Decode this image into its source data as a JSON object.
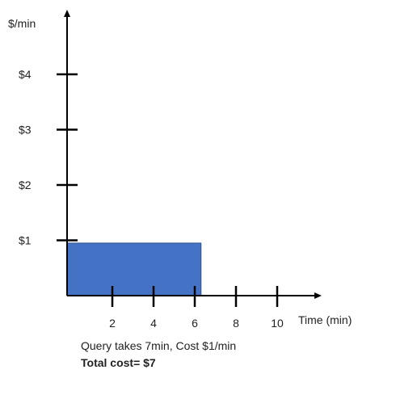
{
  "chart_data": {
    "type": "bar",
    "ylabel": "$/min",
    "xlabel": "Time (min)",
    "x_ticks": [
      2,
      4,
      6,
      8,
      10
    ],
    "x_tick_labels": [
      "2",
      "4",
      "6",
      "8",
      "10"
    ],
    "y_ticks": [
      1,
      2,
      3,
      4
    ],
    "y_tick_labels": [
      "$1",
      "$2",
      "$3",
      "$4"
    ],
    "bars": [
      {
        "x_start": 0,
        "x_end": 6.5,
        "value": 0.95,
        "color": "#4472C4"
      }
    ],
    "axis_color": "#000000"
  },
  "caption": {
    "line1": "Query takes 7min, Cost $1/min",
    "line2": "Total cost= $7"
  }
}
